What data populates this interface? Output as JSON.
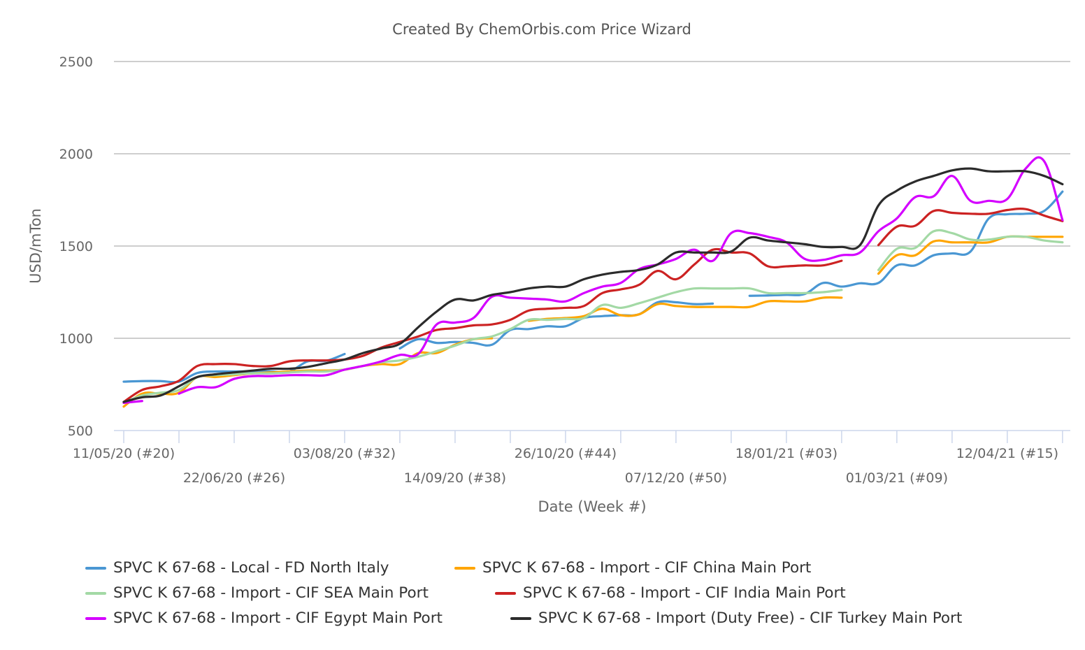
{
  "chart_data": {
    "type": "line",
    "title": "Created By ChemOrbis.com Price Wizard",
    "xlabel": "Date (Week #)",
    "ylabel": "USD/mTon",
    "ylim": [
      500,
      2500
    ],
    "yticks": [
      "500",
      "1000",
      "1500",
      "2000",
      "2500"
    ],
    "grid": true,
    "legend_position": "bottom",
    "x_start": "11/05/20 (#20)",
    "x_end": "03/05/21 (#18)",
    "x_interval": "weekly",
    "xtick_labels": [
      "11/05/20 (#20)",
      "22/06/20 (#26)",
      "03/08/20 (#32)",
      "14/09/20 (#38)",
      "26/10/20 (#44)",
      "07/12/20 (#50)",
      "18/01/21 (#03)",
      "01/03/21 (#09)",
      "12/04/21 (#15)"
    ],
    "series": [
      {
        "name": "SPVC K 67-68 - Local - FD North Italy",
        "color": "#4a97d3",
        "values": [
          765,
          768,
          768,
          765,
          812,
          820,
          820,
          820,
          820,
          820,
          875,
          878,
          915,
          null,
          null,
          945,
          995,
          975,
          980,
          975,
          965,
          1045,
          1050,
          1065,
          1065,
          1110,
          1120,
          1125,
          1130,
          1195,
          1195,
          1185,
          1188,
          null,
          1230,
          1232,
          1235,
          1240,
          1300,
          1280,
          1298,
          1300,
          1395,
          1395,
          1450,
          1460,
          1470,
          1650,
          1672,
          1675,
          1690,
          1795
        ]
      },
      {
        "name": "SPVC K 67-68 - Import - CIF China Main Port",
        "color": "#ffa500",
        "values": [
          630,
          700,
          700,
          705,
          790,
          790,
          800,
          810,
          815,
          820,
          825,
          825,
          830,
          850,
          860,
          860,
          920,
          920,
          965,
          995,
          1000,
          null,
          1095,
          1105,
          1110,
          1120,
          1160,
          1125,
          1130,
          1185,
          1175,
          1170,
          1170,
          1170,
          1170,
          1200,
          1200,
          1200,
          1220,
          1220,
          null,
          1350,
          1450,
          1450,
          1525,
          1520,
          1520,
          1520,
          1550,
          1550,
          1550,
          1550
        ]
      },
      {
        "name": "SPVC K 67-68 - Import - CIF SEA Main Port",
        "color": "#a3d9a5",
        "values": [
          650,
          690,
          705,
          720,
          790,
          800,
          805,
          810,
          810,
          815,
          820,
          820,
          830,
          850,
          870,
          880,
          900,
          930,
          960,
          995,
          1010,
          1050,
          1100,
          1100,
          1105,
          1110,
          1180,
          1165,
          1190,
          1220,
          1250,
          1270,
          1270,
          1270,
          1270,
          1245,
          1245,
          1245,
          1250,
          1262,
          null,
          1370,
          1485,
          1490,
          1580,
          1570,
          1535,
          1535,
          1550,
          1550,
          1530,
          1520
        ]
      },
      {
        "name": "SPVC K 67-68 - Import - CIF India Main Port",
        "color": "#cc2222",
        "values": [
          655,
          720,
          740,
          770,
          850,
          860,
          860,
          850,
          850,
          875,
          880,
          880,
          885,
          905,
          950,
          980,
          1010,
          1045,
          1055,
          1070,
          1075,
          1100,
          1150,
          1160,
          1165,
          1175,
          1245,
          1265,
          1290,
          1365,
          1320,
          1400,
          1480,
          1465,
          1460,
          1390,
          1390,
          1395,
          1395,
          1420,
          null,
          1505,
          1605,
          1610,
          1690,
          1680,
          1675,
          1675,
          1695,
          1700,
          1665,
          1635
        ]
      },
      {
        "name": "SPVC K 67-68 - Import - CIF Egypt Main Port",
        "color": "#d400ff",
        "values": [
          650,
          660,
          null,
          700,
          735,
          735,
          780,
          795,
          795,
          800,
          800,
          800,
          830,
          850,
          875,
          910,
          915,
          1075,
          1085,
          1110,
          1225,
          1220,
          1215,
          1210,
          1200,
          1245,
          1280,
          1300,
          1375,
          1400,
          1430,
          1480,
          1420,
          1570,
          1570,
          1550,
          1520,
          1430,
          1425,
          1450,
          1465,
          1580,
          1650,
          1765,
          1770,
          1880,
          1745,
          1745,
          1755,
          1920,
          1960,
          1640
        ]
      },
      {
        "name": "SPVC K 67-68 - Import (Duty Free) - CIF Turkey Main Port",
        "color": "#2b2b2b",
        "values": [
          655,
          680,
          690,
          740,
          790,
          805,
          815,
          825,
          835,
          835,
          845,
          865,
          885,
          920,
          945,
          970,
          1060,
          1145,
          1210,
          1205,
          1235,
          1250,
          1270,
          1280,
          1280,
          1320,
          1345,
          1360,
          1370,
          1400,
          1465,
          1465,
          1465,
          1470,
          1545,
          1530,
          1520,
          1510,
          1495,
          1495,
          1505,
          1720,
          1800,
          1850,
          1880,
          1910,
          1920,
          1905,
          1905,
          1905,
          1880,
          1835
        ]
      }
    ]
  }
}
